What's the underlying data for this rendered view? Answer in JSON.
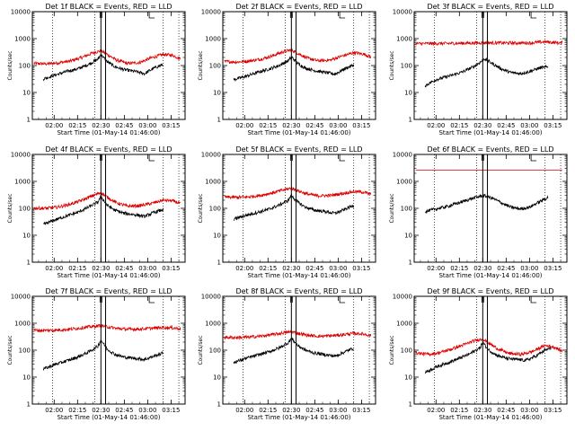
{
  "colors": {
    "events": "#000000",
    "lld": "#dd0000",
    "axes": "#000000"
  },
  "xlabel": "Start Time (01-May-14 01:46:00)",
  "ylabel": "Counts/sec",
  "chart_data": [
    {
      "type": "line",
      "title": "Det 1f BLACK = Events, RED = LLD",
      "xlabel": "Start Time (01-May-14 01:46:00)",
      "ylabel": "Counts/sec",
      "xlim": [
        "01:46:00",
        "03:24:00"
      ],
      "ylim": [
        1,
        10000
      ],
      "yscale": "log",
      "x_ticks": [
        "02:00",
        "02:15",
        "02:30",
        "02:45",
        "03:00",
        "03:15"
      ],
      "y_ticks": [
        "1",
        "10",
        "100",
        "1000",
        "10000"
      ],
      "grid": "dotted vertical lines at 01:59, 02:26, 03:10, 03:20",
      "time_markers": [
        "02:30",
        "02:33"
      ],
      "corner_marks": [
        "02:30",
        "03:01"
      ],
      "series": [
        {
          "name": "Events",
          "color": "#000000",
          "x": [
            "01:53",
            "02:01",
            "02:08",
            "02:15",
            "02:22",
            "02:28",
            "02:30",
            "02:34",
            "02:39",
            "02:45",
            "02:52",
            "02:58",
            "03:04",
            "03:10"
          ],
          "y": [
            32,
            45,
            60,
            75,
            110,
            170,
            260,
            140,
            90,
            70,
            60,
            50,
            80,
            110
          ]
        },
        {
          "name": "LLD",
          "color": "#dd0000",
          "x": [
            "01:47",
            "01:55",
            "02:02",
            "02:10",
            "02:18",
            "02:25",
            "02:30",
            "02:34",
            "02:40",
            "02:47",
            "02:55",
            "03:02",
            "03:10",
            "03:16",
            "03:21"
          ],
          "y": [
            120,
            115,
            125,
            145,
            200,
            300,
            350,
            260,
            160,
            120,
            130,
            190,
            260,
            240,
            180
          ]
        }
      ]
    },
    {
      "type": "line",
      "title": "Det 2f BLACK = Events, RED = LLD",
      "xlabel": "Start Time (01-May-14 01:46:00)",
      "ylabel": "Counts/sec",
      "xlim": [
        "01:46:00",
        "03:24:00"
      ],
      "ylim": [
        1,
        10000
      ],
      "yscale": "log",
      "x_ticks": [
        "02:00",
        "02:15",
        "02:30",
        "02:45",
        "03:00",
        "03:15"
      ],
      "y_ticks": [
        "1",
        "10",
        "100",
        "1000",
        "10000"
      ],
      "grid": "dotted vertical lines at 01:59, 02:26, 03:10, 03:20",
      "time_markers": [
        "02:30",
        "02:33"
      ],
      "corner_marks": [
        "02:30",
        "03:01"
      ],
      "series": [
        {
          "name": "Events",
          "color": "#000000",
          "x": [
            "01:53",
            "02:01",
            "02:08",
            "02:15",
            "02:22",
            "02:28",
            "02:30",
            "02:34",
            "02:39",
            "02:45",
            "02:52",
            "02:58",
            "03:04",
            "03:10"
          ],
          "y": [
            30,
            40,
            55,
            72,
            100,
            150,
            210,
            120,
            80,
            65,
            55,
            48,
            75,
            105
          ]
        },
        {
          "name": "LLD",
          "color": "#dd0000",
          "x": [
            "01:47",
            "01:55",
            "02:02",
            "02:10",
            "02:18",
            "02:25",
            "02:30",
            "02:34",
            "02:40",
            "02:47",
            "02:55",
            "03:02",
            "03:10",
            "03:16",
            "03:21"
          ],
          "y": [
            140,
            135,
            145,
            170,
            230,
            330,
            380,
            290,
            190,
            150,
            160,
            220,
            300,
            270,
            210
          ]
        }
      ]
    },
    {
      "type": "line",
      "title": "Det 3f BLACK = Events, RED = LLD",
      "xlabel": "Start Time (01-May-14 01:46:00)",
      "ylabel": "Counts/sec",
      "xlim": [
        "01:46:00",
        "03:24:00"
      ],
      "ylim": [
        1,
        10000
      ],
      "yscale": "log",
      "x_ticks": [
        "02:00",
        "02:15",
        "02:30",
        "02:45",
        "03:00",
        "03:15"
      ],
      "y_ticks": [
        "1",
        "10",
        "100",
        "1000",
        "10000"
      ],
      "grid": "dotted vertical lines at 01:59, 02:26, 03:10, 03:20",
      "time_markers": [
        "02:30",
        "02:33"
      ],
      "corner_marks": [
        "02:30",
        "03:01"
      ],
      "series": [
        {
          "name": "Events",
          "color": "#000000",
          "x": [
            "01:53",
            "02:00",
            "02:08",
            "02:16",
            "02:24",
            "02:29",
            "02:31",
            "02:36",
            "02:42",
            "02:48",
            "02:54",
            "03:00",
            "03:06",
            "03:12"
          ],
          "y": [
            18,
            30,
            40,
            55,
            90,
            140,
            180,
            120,
            75,
            55,
            50,
            60,
            80,
            90
          ]
        },
        {
          "name": "LLD",
          "color": "#dd0000",
          "x": [
            "01:47",
            "02:00",
            "02:15",
            "02:30",
            "02:45",
            "03:00",
            "03:10",
            "03:21"
          ],
          "y": [
            650,
            660,
            670,
            700,
            690,
            690,
            760,
            680
          ]
        }
      ]
    },
    {
      "type": "line",
      "title": "Det 4f BLACK = Events, RED = LLD",
      "xlabel": "Start Time (01-May-14 01:46:00)",
      "ylabel": "Counts/sec",
      "xlim": [
        "01:46:00",
        "03:24:00"
      ],
      "ylim": [
        1,
        10000
      ],
      "yscale": "log",
      "x_ticks": [
        "02:00",
        "02:15",
        "02:30",
        "02:45",
        "03:00",
        "03:15"
      ],
      "y_ticks": [
        "1",
        "10",
        "100",
        "1000",
        "10000"
      ],
      "grid": "dotted vertical lines at 01:59, 02:26, 03:10, 03:20",
      "time_markers": [
        "02:30",
        "02:33"
      ],
      "corner_marks": [
        "02:30",
        "03:01"
      ],
      "series": [
        {
          "name": "Events",
          "color": "#000000",
          "x": [
            "01:53",
            "02:01",
            "02:08",
            "02:15",
            "02:22",
            "02:28",
            "02:30",
            "02:34",
            "02:39",
            "02:45",
            "02:52",
            "02:58",
            "03:04",
            "03:10"
          ],
          "y": [
            25,
            38,
            52,
            70,
            110,
            170,
            270,
            130,
            85,
            65,
            58,
            50,
            70,
            90
          ]
        },
        {
          "name": "LLD",
          "color": "#dd0000",
          "x": [
            "01:47",
            "01:55",
            "02:02",
            "02:10",
            "02:18",
            "02:25",
            "02:30",
            "02:34",
            "02:40",
            "02:47",
            "02:55",
            "03:02",
            "03:10",
            "03:16",
            "03:21"
          ],
          "y": [
            100,
            100,
            110,
            140,
            200,
            300,
            380,
            260,
            160,
            120,
            125,
            150,
            200,
            190,
            150
          ]
        }
      ]
    },
    {
      "type": "line",
      "title": "Det 5f BLACK = Events, RED = LLD",
      "xlabel": "Start Time (01-May-14 01:46:00)",
      "ylabel": "Counts/sec",
      "xlim": [
        "01:46:00",
        "03:24:00"
      ],
      "ylim": [
        1,
        10000
      ],
      "yscale": "log",
      "x_ticks": [
        "02:00",
        "02:15",
        "02:30",
        "02:45",
        "03:00",
        "03:15"
      ],
      "y_ticks": [
        "1",
        "10",
        "100",
        "1000",
        "10000"
      ],
      "grid": "dotted vertical lines at 01:59, 02:26, 03:10, 03:20",
      "time_markers": [
        "02:30",
        "02:33"
      ],
      "corner_marks": [
        "02:30",
        "03:01"
      ],
      "series": [
        {
          "name": "Events",
          "color": "#000000",
          "x": [
            "01:53",
            "02:01",
            "02:08",
            "02:15",
            "02:22",
            "02:28",
            "02:30",
            "02:34",
            "02:39",
            "02:45",
            "02:52",
            "02:58",
            "03:04",
            "03:10"
          ],
          "y": [
            40,
            55,
            70,
            90,
            130,
            200,
            300,
            170,
            110,
            85,
            75,
            65,
            90,
            130
          ]
        },
        {
          "name": "LLD",
          "color": "#dd0000",
          "x": [
            "01:47",
            "01:55",
            "02:02",
            "02:10",
            "02:18",
            "02:25",
            "02:30",
            "02:34",
            "02:40",
            "02:47",
            "02:55",
            "03:02",
            "03:10",
            "03:16",
            "03:21"
          ],
          "y": [
            260,
            255,
            265,
            300,
            380,
            480,
            560,
            450,
            340,
            290,
            300,
            350,
            420,
            400,
            330
          ]
        }
      ]
    },
    {
      "type": "line",
      "title": "Det 6f BLACK = Events, RED = LLD",
      "xlabel": "Start Time (01-May-14 01:46:00)",
      "ylabel": "Counts/sec",
      "xlim": [
        "01:46:00",
        "03:24:00"
      ],
      "ylim": [
        1,
        10000
      ],
      "yscale": "log",
      "x_ticks": [
        "02:00",
        "02:15",
        "02:30",
        "02:45",
        "03:00",
        "03:15"
      ],
      "y_ticks": [
        "1",
        "10",
        "100",
        "1000",
        "10000"
      ],
      "grid": "dotted vertical lines at 01:59, 02:26, 03:10, 03:20",
      "time_markers": [
        "02:30",
        "02:33"
      ],
      "corner_marks": [
        "02:30",
        "03:01"
      ],
      "series": [
        {
          "name": "Events",
          "color": "#000000",
          "x": [
            "01:53",
            "02:00",
            "02:08",
            "02:16",
            "02:24",
            "02:30",
            "02:36",
            "02:42",
            "02:48",
            "02:54",
            "03:00",
            "03:06",
            "03:12"
          ],
          "y": [
            75,
            95,
            120,
            170,
            240,
            300,
            240,
            160,
            110,
            95,
            110,
            170,
            260
          ]
        },
        {
          "name": "LLD",
          "color": "#dd0000",
          "x": [
            "01:47",
            "03:21"
          ],
          "y": [
            2600,
            2600
          ]
        }
      ]
    },
    {
      "type": "line",
      "title": "Det 7f BLACK = Events, RED = LLD",
      "xlabel": "Start Time (01-May-14 01:46:00)",
      "ylabel": "Counts/sec",
      "xlim": [
        "01:46:00",
        "03:24:00"
      ],
      "ylim": [
        1,
        10000
      ],
      "yscale": "log",
      "x_ticks": [
        "02:00",
        "02:15",
        "02:30",
        "02:45",
        "03:00",
        "03:15"
      ],
      "y_ticks": [
        "1",
        "10",
        "100",
        "1000",
        "10000"
      ],
      "grid": "dotted vertical lines at 01:59, 02:26, 03:10, 03:20",
      "time_markers": [
        "02:30",
        "02:33"
      ],
      "corner_marks": [
        "02:30",
        "03:01"
      ],
      "series": [
        {
          "name": "Events",
          "color": "#000000",
          "x": [
            "01:53",
            "02:01",
            "02:08",
            "02:15",
            "02:22",
            "02:28",
            "02:30",
            "02:34",
            "02:39",
            "02:45",
            "02:52",
            "02:58",
            "03:04",
            "03:10"
          ],
          "y": [
            20,
            30,
            40,
            55,
            85,
            140,
            240,
            110,
            70,
            55,
            50,
            45,
            60,
            80
          ]
        },
        {
          "name": "LLD",
          "color": "#dd0000",
          "x": [
            "01:47",
            "01:55",
            "02:02",
            "02:10",
            "02:18",
            "02:25",
            "02:30",
            "02:34",
            "02:40",
            "02:47",
            "02:55",
            "03:02",
            "03:10",
            "03:16",
            "03:21"
          ],
          "y": [
            550,
            540,
            560,
            600,
            680,
            760,
            820,
            740,
            640,
            600,
            610,
            650,
            700,
            680,
            620
          ]
        }
      ]
    },
    {
      "type": "line",
      "title": "Det 8f BLACK = Events, RED = LLD",
      "xlabel": "Start Time (01-May-14 01:46:00)",
      "ylabel": "Counts/sec",
      "xlim": [
        "01:46:00",
        "03:24:00"
      ],
      "ylim": [
        1,
        10000
      ],
      "yscale": "log",
      "x_ticks": [
        "02:00",
        "02:15",
        "02:30",
        "02:45",
        "03:00",
        "03:15"
      ],
      "y_ticks": [
        "1",
        "10",
        "100",
        "1000",
        "10000"
      ],
      "grid": "dotted vertical lines at 01:59, 02:26, 03:10, 03:20",
      "time_markers": [
        "02:30",
        "02:33"
      ],
      "corner_marks": [
        "02:30",
        "03:01"
      ],
      "series": [
        {
          "name": "Events",
          "color": "#000000",
          "x": [
            "01:53",
            "02:01",
            "02:08",
            "02:15",
            "02:22",
            "02:28",
            "02:30",
            "02:34",
            "02:39",
            "02:45",
            "02:52",
            "02:58",
            "03:04",
            "03:10"
          ],
          "y": [
            35,
            50,
            65,
            85,
            120,
            190,
            280,
            150,
            100,
            78,
            68,
            60,
            85,
            120
          ]
        },
        {
          "name": "LLD",
          "color": "#dd0000",
          "x": [
            "01:47",
            "01:55",
            "02:02",
            "02:10",
            "02:18",
            "02:25",
            "02:30",
            "02:34",
            "02:40",
            "02:47",
            "02:55",
            "03:02",
            "03:10",
            "03:16",
            "03:21"
          ],
          "y": [
            300,
            295,
            305,
            330,
            380,
            440,
            480,
            430,
            360,
            330,
            340,
            370,
            420,
            400,
            350
          ]
        }
      ]
    },
    {
      "type": "line",
      "title": "Det 9f BLACK = Events, RED = LLD",
      "xlabel": "Start Time (01-May-14 01:46:00)",
      "ylabel": "Counts/sec",
      "xlim": [
        "01:46:00",
        "03:24:00"
      ],
      "ylim": [
        1,
        10000
      ],
      "yscale": "log",
      "x_ticks": [
        "02:00",
        "02:15",
        "02:30",
        "02:45",
        "03:00",
        "03:15"
      ],
      "y_ticks": [
        "1",
        "10",
        "100",
        "1000",
        "10000"
      ],
      "grid": "dotted vertical lines at 01:59, 02:26, 03:10, 03:20",
      "time_markers": [
        "02:30",
        "02:33"
      ],
      "corner_marks": [
        "02:30",
        "03:01"
      ],
      "series": [
        {
          "name": "Events",
          "color": "#000000",
          "x": [
            "01:53",
            "02:01",
            "02:08",
            "02:15",
            "02:22",
            "02:28",
            "02:30",
            "02:34",
            "02:39",
            "02:45",
            "02:52",
            "02:58",
            "03:04",
            "03:10",
            "03:14"
          ],
          "y": [
            15,
            25,
            35,
            50,
            75,
            120,
            190,
            100,
            65,
            50,
            45,
            42,
            60,
            100,
            120
          ]
        },
        {
          "name": "LLD",
          "color": "#dd0000",
          "x": [
            "01:47",
            "01:55",
            "02:02",
            "02:10",
            "02:18",
            "02:25",
            "02:30",
            "02:34",
            "02:40",
            "02:47",
            "02:55",
            "03:02",
            "03:10",
            "03:16",
            "03:21"
          ],
          "y": [
            80,
            70,
            80,
            110,
            160,
            230,
            260,
            180,
            110,
            75,
            70,
            90,
            150,
            130,
            90
          ]
        }
      ]
    }
  ]
}
